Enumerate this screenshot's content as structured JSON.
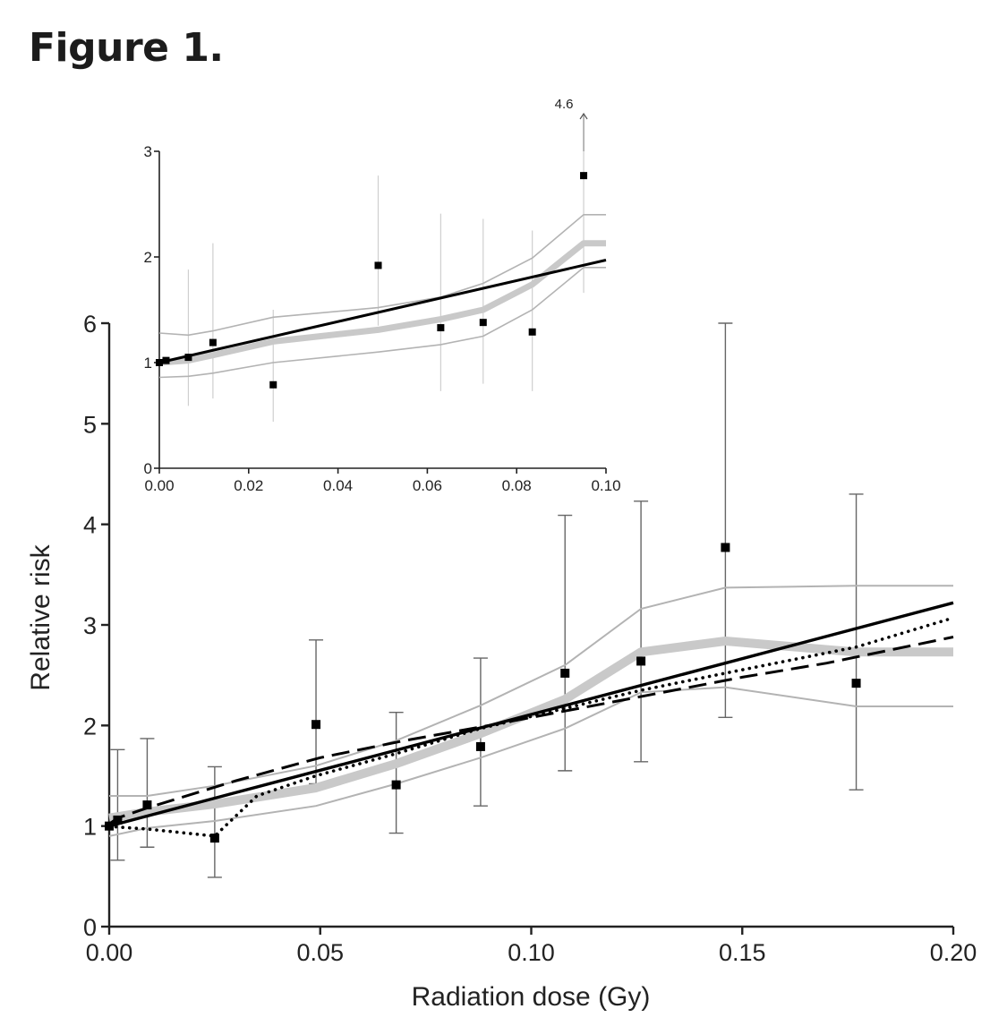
{
  "figure": {
    "title": "Figure 1."
  },
  "chart_data": [
    {
      "id": "main",
      "type": "scatter",
      "title": "",
      "xlabel": "Radiation dose (Gy)",
      "ylabel": "Relative risk",
      "xlim": [
        0,
        0.2
      ],
      "ylim": [
        0,
        6
      ],
      "x_ticks": [
        0,
        0.05,
        0.1,
        0.15,
        0.2
      ],
      "x_tick_labels": [
        "0.00",
        "0.05",
        "0.10",
        "0.15",
        "0.20"
      ],
      "y_ticks": [
        0,
        1,
        2,
        3,
        4,
        5,
        6
      ],
      "y_tick_labels": [
        "0",
        "1",
        "2",
        "3",
        "4",
        "5",
        "6"
      ],
      "points": [
        {
          "x": 0.0,
          "y": 1.0,
          "lo": null,
          "hi": null
        },
        {
          "x": 0.002,
          "y": 1.06,
          "lo": 0.66,
          "hi": 1.76
        },
        {
          "x": 0.009,
          "y": 1.21,
          "lo": 0.79,
          "hi": 1.87
        },
        {
          "x": 0.025,
          "y": 0.88,
          "lo": 0.49,
          "hi": 1.59
        },
        {
          "x": 0.049,
          "y": 2.01,
          "lo": 1.42,
          "hi": 2.85
        },
        {
          "x": 0.068,
          "y": 1.41,
          "lo": 0.93,
          "hi": 2.13
        },
        {
          "x": 0.088,
          "y": 1.79,
          "lo": 1.2,
          "hi": 2.67
        },
        {
          "x": 0.108,
          "y": 2.52,
          "lo": 1.55,
          "hi": 4.09
        },
        {
          "x": 0.126,
          "y": 2.64,
          "lo": 1.64,
          "hi": 4.23
        },
        {
          "x": 0.146,
          "y": 3.77,
          "lo": 2.08,
          "hi": 6.0
        },
        {
          "x": 0.177,
          "y": 2.42,
          "lo": 1.36,
          "hi": 4.3
        }
      ],
      "series": [
        {
          "name": "linear fit",
          "style": "solid-black",
          "x": [
            0,
            0.2
          ],
          "y": [
            1.0,
            3.22
          ]
        },
        {
          "name": "dashed fit",
          "style": "dashed-black",
          "x": [
            0,
            0.002,
            0.009,
            0.03,
            0.05,
            0.07,
            0.09,
            0.11,
            0.13,
            0.15,
            0.17,
            0.2
          ],
          "y": [
            1.02,
            1.08,
            1.18,
            1.45,
            1.68,
            1.85,
            2.0,
            2.16,
            2.32,
            2.48,
            2.62,
            2.88
          ]
        },
        {
          "name": "dotted fit",
          "style": "dotted-black",
          "x": [
            0,
            0.002,
            0.009,
            0.025,
            0.035,
            0.049,
            0.068,
            0.088,
            0.108,
            0.126,
            0.146,
            0.177,
            0.2
          ],
          "y": [
            1.0,
            0.99,
            0.97,
            0.9,
            1.3,
            1.5,
            1.72,
            1.97,
            2.17,
            2.35,
            2.52,
            2.78,
            3.07
          ]
        },
        {
          "name": "smoothed estimate",
          "style": "thick-gray",
          "x": [
            0,
            0.009,
            0.025,
            0.049,
            0.068,
            0.088,
            0.108,
            0.126,
            0.146,
            0.177,
            0.2
          ],
          "y": [
            1.08,
            1.14,
            1.22,
            1.38,
            1.62,
            1.92,
            2.26,
            2.73,
            2.84,
            2.73,
            2.73
          ]
        },
        {
          "name": "upper bound",
          "style": "thin-gray",
          "x": [
            0,
            0.009,
            0.025,
            0.049,
            0.068,
            0.088,
            0.108,
            0.126,
            0.146,
            0.177,
            0.2
          ],
          "y": [
            1.3,
            1.3,
            1.4,
            1.6,
            1.85,
            2.2,
            2.6,
            3.16,
            3.37,
            3.39,
            3.39
          ]
        },
        {
          "name": "lower bound",
          "style": "thin-gray",
          "x": [
            0,
            0.009,
            0.025,
            0.049,
            0.068,
            0.088,
            0.108,
            0.126,
            0.146,
            0.177,
            0.2
          ],
          "y": [
            0.9,
            0.98,
            1.05,
            1.2,
            1.42,
            1.68,
            1.97,
            2.33,
            2.38,
            2.19,
            2.19
          ]
        }
      ]
    },
    {
      "id": "inset",
      "type": "scatter",
      "title": "",
      "xlabel": "",
      "ylabel": "",
      "xlim": [
        0,
        0.1
      ],
      "ylim": [
        0,
        3
      ],
      "x_ticks": [
        0,
        0.02,
        0.04,
        0.06,
        0.08,
        0.1
      ],
      "x_tick_labels": [
        "0.00",
        "0.02",
        "0.04",
        "0.06",
        "0.08",
        "0.10"
      ],
      "y_ticks": [
        0,
        1,
        2,
        3
      ],
      "y_tick_labels": [
        "0",
        "1",
        "2",
        "3"
      ],
      "annotation": {
        "text": "4.6",
        "x": 0.095,
        "meaning": "upper confidence limit off scale (arrow)"
      },
      "points": [
        {
          "x": 0.0,
          "y": 1.0,
          "lo": null,
          "hi": null
        },
        {
          "x": 0.0015,
          "y": 1.02,
          "lo": null,
          "hi": null
        },
        {
          "x": 0.0065,
          "y": 1.05,
          "lo": 0.59,
          "hi": 1.88
        },
        {
          "x": 0.012,
          "y": 1.19,
          "lo": 0.66,
          "hi": 2.13
        },
        {
          "x": 0.0255,
          "y": 0.79,
          "lo": 0.44,
          "hi": 1.5
        },
        {
          "x": 0.049,
          "y": 1.92,
          "lo": 1.35,
          "hi": 2.77
        },
        {
          "x": 0.063,
          "y": 1.33,
          "lo": 0.73,
          "hi": 2.41
        },
        {
          "x": 0.0725,
          "y": 1.38,
          "lo": 0.8,
          "hi": 2.36
        },
        {
          "x": 0.0835,
          "y": 1.29,
          "lo": 0.73,
          "hi": 2.25
        },
        {
          "x": 0.095,
          "y": 2.77,
          "lo": 1.66,
          "hi": 4.6
        }
      ],
      "series": [
        {
          "name": "linear fit",
          "style": "solid-black",
          "x": [
            0,
            0.1
          ],
          "y": [
            1.0,
            1.97
          ]
        },
        {
          "name": "smoothed estimate",
          "style": "thick-gray",
          "x": [
            0,
            0.0065,
            0.012,
            0.0255,
            0.049,
            0.063,
            0.0725,
            0.0835,
            0.095,
            0.1
          ],
          "y": [
            1.0,
            1.02,
            1.07,
            1.2,
            1.31,
            1.41,
            1.5,
            1.74,
            2.13,
            2.13
          ]
        },
        {
          "name": "upper bound",
          "style": "thin-gray",
          "x": [
            0,
            0.0065,
            0.012,
            0.0255,
            0.049,
            0.063,
            0.0725,
            0.0835,
            0.095,
            0.1
          ],
          "y": [
            1.28,
            1.26,
            1.3,
            1.43,
            1.52,
            1.62,
            1.75,
            1.99,
            2.4,
            2.4
          ]
        },
        {
          "name": "lower bound",
          "style": "thin-gray",
          "x": [
            0,
            0.0065,
            0.012,
            0.0255,
            0.049,
            0.063,
            0.0725,
            0.0835,
            0.095,
            0.1
          ],
          "y": [
            0.86,
            0.87,
            0.9,
            1.0,
            1.1,
            1.17,
            1.25,
            1.5,
            1.9,
            1.9
          ]
        }
      ]
    }
  ]
}
